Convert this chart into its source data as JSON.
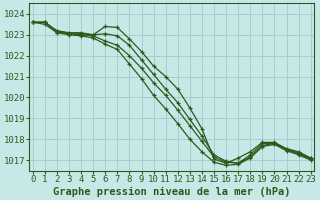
{
  "background_color": "#c8e8e8",
  "grid_color": "#aacccc",
  "line_color": "#2d5a1b",
  "title": "Graphe pression niveau de la mer (hPa)",
  "title_fontsize": 7.5,
  "tick_fontsize": 6.5,
  "ylim": [
    1016.5,
    1024.5
  ],
  "xlim": [
    -0.3,
    23.3
  ],
  "yticks": [
    1017,
    1018,
    1019,
    1020,
    1021,
    1022,
    1023,
    1024
  ],
  "xticks": [
    0,
    1,
    2,
    3,
    4,
    5,
    6,
    7,
    8,
    9,
    10,
    11,
    12,
    13,
    14,
    15,
    16,
    17,
    18,
    19,
    20,
    21,
    22,
    23
  ],
  "series": [
    [
      1023.6,
      1023.6,
      1023.2,
      1023.1,
      1023.1,
      1023.0,
      1023.4,
      1023.35,
      1022.8,
      1022.2,
      1021.5,
      1021.0,
      1020.4,
      1019.5,
      1018.5,
      1017.05,
      1016.85,
      1017.1,
      1017.4,
      1017.85,
      1017.85,
      1017.55,
      1017.4,
      1017.1
    ],
    [
      1023.6,
      1023.6,
      1023.15,
      1023.05,
      1023.05,
      1023.0,
      1023.05,
      1022.95,
      1022.5,
      1021.8,
      1021.1,
      1020.4,
      1019.75,
      1018.95,
      1018.15,
      1017.25,
      1016.95,
      1016.85,
      1017.25,
      1017.8,
      1017.8,
      1017.5,
      1017.35,
      1017.1
    ],
    [
      1023.6,
      1023.6,
      1023.15,
      1023.05,
      1023.0,
      1022.95,
      1022.7,
      1022.5,
      1022.0,
      1021.4,
      1020.7,
      1020.1,
      1019.4,
      1018.65,
      1017.9,
      1017.15,
      1016.9,
      1016.85,
      1017.15,
      1017.7,
      1017.8,
      1017.5,
      1017.3,
      1017.05
    ],
    [
      1023.6,
      1023.5,
      1023.1,
      1023.0,
      1022.95,
      1022.85,
      1022.55,
      1022.3,
      1021.6,
      1020.9,
      1020.1,
      1019.45,
      1018.75,
      1018.0,
      1017.4,
      1016.9,
      1016.75,
      1016.8,
      1017.1,
      1017.65,
      1017.75,
      1017.45,
      1017.25,
      1017.0
    ]
  ]
}
